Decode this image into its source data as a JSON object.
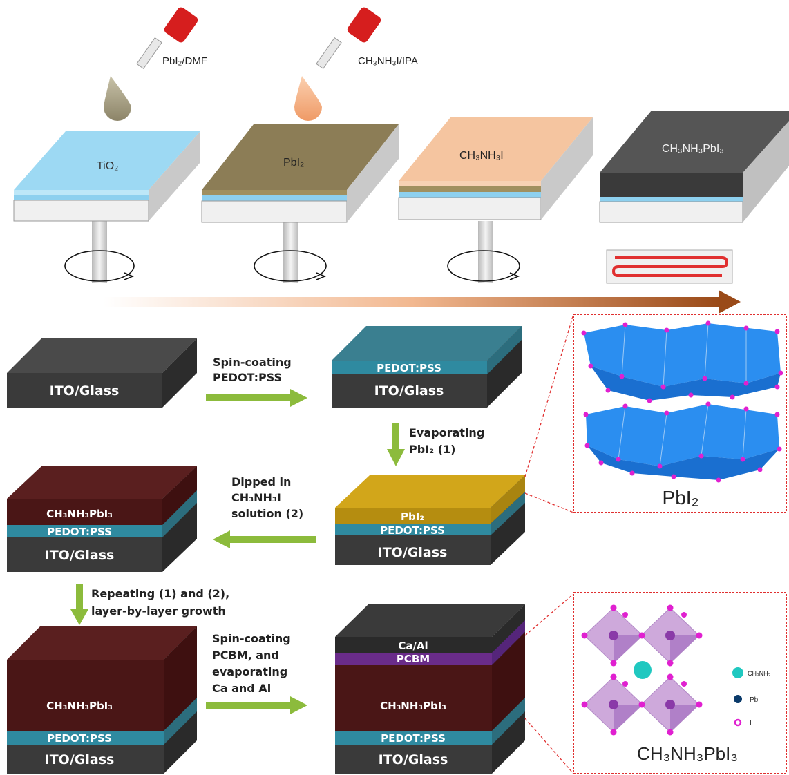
{
  "top_process": {
    "dropper1_label": "PbI₂/DMF",
    "dropper2_label": "CH₃NH₃I/IPA",
    "substrate1_label": "TiO₂",
    "substrate2_label": "PbI₂",
    "substrate3_label": "CH₃NH₃I",
    "substrate4_label": "CH₃NH₃PbI₃",
    "colors": {
      "tio2": "#9dd9f3",
      "pbi2": "#8c7d56",
      "mai": "#f5c5a0",
      "perovskite": "#4f4f4f",
      "glass": "#f0f0f0",
      "process_arrow": "#a64f1c",
      "heater_coil": "#e03030"
    }
  },
  "bottom_process": {
    "step1": {
      "layers": [
        "ITO/Glass"
      ]
    },
    "arrow1": {
      "line1": "Spin-coating",
      "line2": "PEDOT:PSS"
    },
    "step2": {
      "layers": [
        "PEDOT:PSS",
        "ITO/Glass"
      ]
    },
    "arrow2": {
      "line1": "Evaporating",
      "line2": "PbI₂ (1)"
    },
    "step3": {
      "layers": [
        "PbI₂",
        "PEDOT:PSS",
        "ITO/Glass"
      ]
    },
    "arrow3": {
      "line1": "Dipped in",
      "line2": "CH₃NH₃I",
      "line3": "solution (2)"
    },
    "step4": {
      "layers": [
        "CH₃NH₃PbI₃",
        "PEDOT:PSS",
        "ITO/Glass"
      ]
    },
    "arrow4": {
      "line1": "Repeating (1) and (2),",
      "line2": "layer-by-layer growth"
    },
    "step5": {
      "layers": [
        "CH₃NH₃PbI₃",
        "PEDOT:PSS",
        "ITO/Glass"
      ]
    },
    "arrow5": {
      "line1": "Spin-coating",
      "line2": "PCBM, and",
      "line3": "evaporating",
      "line4": "Ca and Al"
    },
    "step6": {
      "layers": [
        "Ca/Al",
        "PCBM",
        "CH₃NH₃PbI₃",
        "PEDOT:PSS",
        "ITO/Glass"
      ]
    },
    "colors": {
      "ito": "#3a3a3a",
      "pedot": "#2f8aa0",
      "pbi2": "#b58d10",
      "perovskite": "#4a1616",
      "pcbm": "#6a2c8a",
      "caal": "#2a2a2a",
      "flow_arrow": "#8cbb3c"
    }
  },
  "structures": {
    "pbi2_title": "PbI₂",
    "perovskite_title": "CH₃NH₃PbI₃",
    "legend": {
      "cation": "CH₃NH₃",
      "pb": "Pb",
      "iodine": "I"
    },
    "colors": {
      "octahedron": "#2b8ef0",
      "iodine": "#e020d0",
      "perov_octahedron": "#c9a0d8",
      "cation": "#20c8c0",
      "pb": "#0a3a6a",
      "frame": "#e03030"
    }
  }
}
